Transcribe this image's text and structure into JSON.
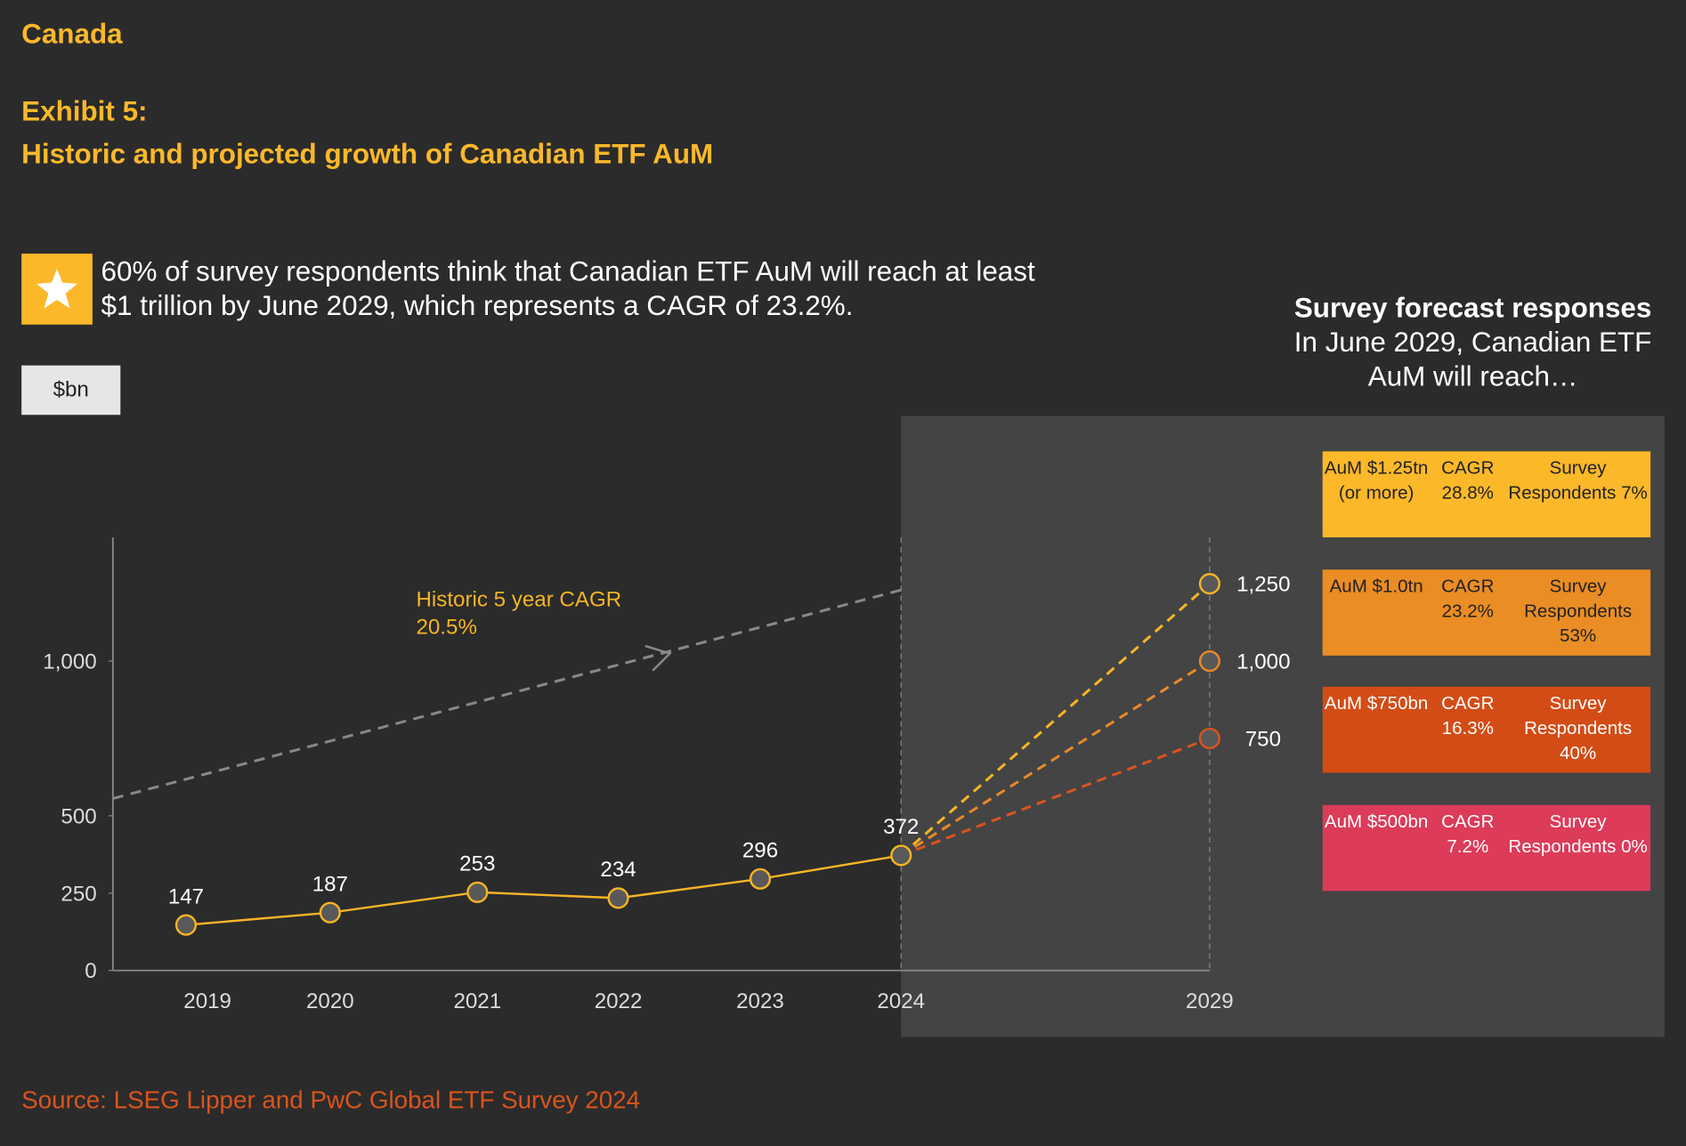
{
  "header": {
    "region": "Canada",
    "exhibit": "Exhibit 5:",
    "title": "Historic and projected growth of Canadian ETF AuM"
  },
  "callout": {
    "line1": "60% of survey respondents think that Canadian ETF AuM will reach at least",
    "line2": "$1 trillion by June 2029, which represents a CAGR of 23.2%."
  },
  "unit": "$bn",
  "panel": {
    "title": "Survey forecast responses",
    "subtitle1": "In June 2029, Canadian ETF",
    "subtitle2": "AuM will reach…",
    "boxes": [
      {
        "aum": "AuM $1.25tn (or more)",
        "cagr": "CAGR 28.8%",
        "respondents": "Survey Respondents 7%",
        "color": "#fbb829"
      },
      {
        "aum": "AuM $1.0tn",
        "cagr": "CAGR 23.2%",
        "respondents": "Survey Respondents 53%",
        "color": "#ea8d24"
      },
      {
        "aum": "AuM $750bn",
        "cagr": "CAGR 16.3%",
        "respondents": "Survey Respondents 40%",
        "color": "#d34c16"
      },
      {
        "aum": "AuM $500bn",
        "cagr": "CAGR 7.2%",
        "respondents": "Survey Respondents 0%",
        "color": "#dc3b59"
      }
    ]
  },
  "source": "Source: LSEG Lipper and PwC Global ETF Survey 2024",
  "chart_data": {
    "type": "line",
    "categories": [
      "2019",
      "2020",
      "2021",
      "2022",
      "2023",
      "2024",
      "2029"
    ],
    "ylim": [
      0,
      1400
    ],
    "yticks": [
      0,
      250,
      500,
      {
        "value": 1000,
        "label": "1,000"
      }
    ],
    "annotation": {
      "line1": "Historic 5 year CAGR",
      "line2": "20.5%"
    },
    "series": [
      {
        "color": "#f5b427",
        "values": [
          147,
          187,
          253,
          234,
          296,
          372,
          null
        ]
      },
      {
        "color": "#f5b427",
        "values": [
          null,
          null,
          null,
          null,
          null,
          372,
          1250
        ],
        "value_labels": [
          null,
          null,
          null,
          null,
          null,
          null,
          "1,250"
        ]
      },
      {
        "color": "#e8892a",
        "values": [
          null,
          null,
          null,
          null,
          null,
          372,
          1000
        ],
        "value_labels": [
          null,
          null,
          null,
          null,
          null,
          null,
          "1,000"
        ]
      },
      {
        "color": "#d9541e",
        "values": [
          null,
          null,
          null,
          null,
          null,
          372,
          750
        ]
      }
    ]
  }
}
